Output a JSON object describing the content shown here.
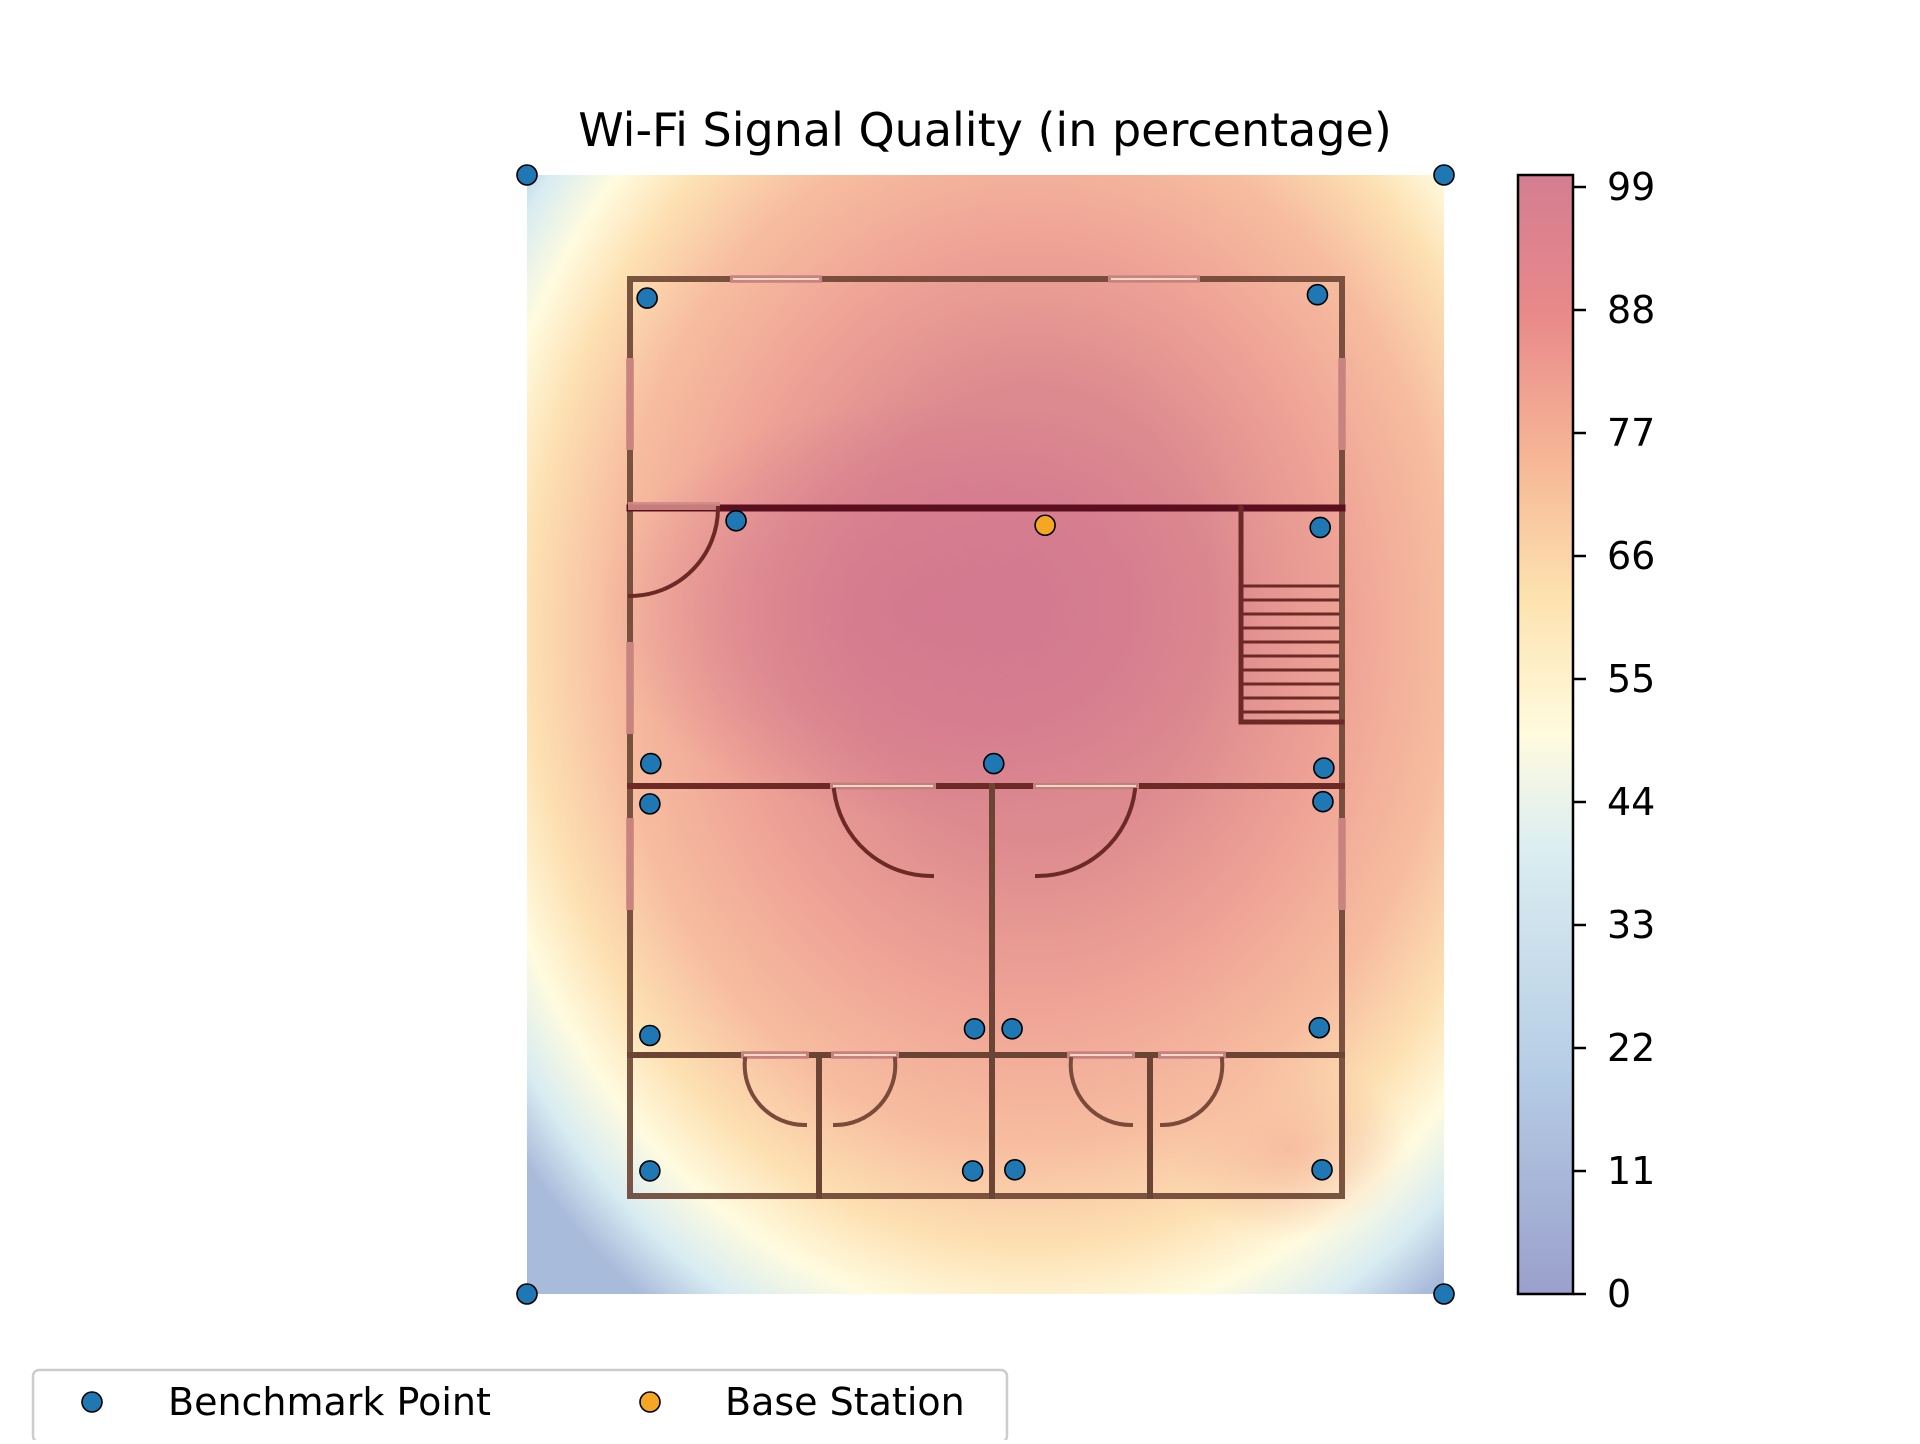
{
  "chart_data": {
    "type": "heatmap",
    "title": "Wi-Fi Signal Quality (in percentage)",
    "xlabel": "",
    "ylabel": "",
    "grid": false,
    "axes_visible": false,
    "colormap": "RdYlBu_r",
    "colorbar": {
      "range": [
        0,
        99
      ],
      "ticks": [
        "0",
        "11",
        "22",
        "33",
        "44",
        "55",
        "66",
        "77",
        "88",
        "99"
      ],
      "colors": [
        "#9aa0cc",
        "#b6cde6",
        "#dceef1",
        "#fffbdf",
        "#fde3b0",
        "#f6b595",
        "#e8888a",
        "#d47e91"
      ]
    },
    "base_station": {
      "x": 0.565,
      "y": 0.687,
      "quality": 99,
      "color": "#f5a623"
    },
    "benchmark_color": "#1f77b4",
    "benchmark_points": [
      {
        "x": 0.0,
        "y": 1.0
      },
      {
        "x": 1.0,
        "y": 1.0
      },
      {
        "x": 0.0,
        "y": 0.0
      },
      {
        "x": 1.0,
        "y": 0.0
      },
      {
        "x": 0.131,
        "y": 0.89
      },
      {
        "x": 0.862,
        "y": 0.893
      },
      {
        "x": 0.228,
        "y": 0.691
      },
      {
        "x": 0.865,
        "y": 0.685
      },
      {
        "x": 0.135,
        "y": 0.474
      },
      {
        "x": 0.509,
        "y": 0.474
      },
      {
        "x": 0.869,
        "y": 0.47
      },
      {
        "x": 0.134,
        "y": 0.438
      },
      {
        "x": 0.868,
        "y": 0.44
      },
      {
        "x": 0.134,
        "y": 0.231
      },
      {
        "x": 0.488,
        "y": 0.237
      },
      {
        "x": 0.529,
        "y": 0.237
      },
      {
        "x": 0.864,
        "y": 0.238
      },
      {
        "x": 0.134,
        "y": 0.11
      },
      {
        "x": 0.486,
        "y": 0.11
      },
      {
        "x": 0.532,
        "y": 0.111
      },
      {
        "x": 0.867,
        "y": 0.111
      }
    ],
    "legend": {
      "position": "bottom-left",
      "entries": [
        {
          "label": "Benchmark Point",
          "color": "#1f77b4"
        },
        {
          "label": "Base Station",
          "color": "#f5a623"
        }
      ]
    }
  }
}
